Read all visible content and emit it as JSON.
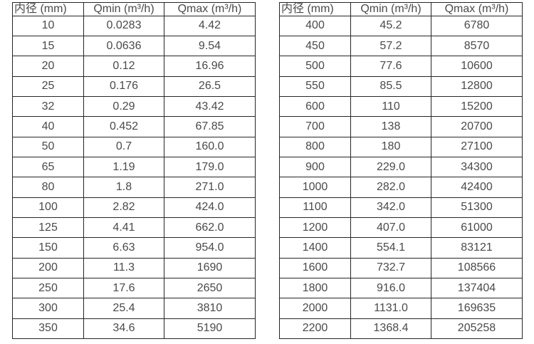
{
  "colors": {
    "background": "#ffffff",
    "border": "#262626",
    "text": "#4a4a4a"
  },
  "chart_data": [
    {
      "type": "table",
      "name": "flow-rate-table-small-diameters",
      "columns": [
        "内径 (mm)",
        "Qmin (m³/h)",
        "Qmax (m³/h)"
      ],
      "rows": [
        [
          "10",
          "0.0283",
          "4.42"
        ],
        [
          "15",
          "0.0636",
          "9.54"
        ],
        [
          "20",
          "0.12",
          "16.96"
        ],
        [
          "25",
          "0.176",
          "26.5"
        ],
        [
          "32",
          "0.29",
          "43.42"
        ],
        [
          "40",
          "0.452",
          "67.85"
        ],
        [
          "50",
          "0.7",
          "160.0"
        ],
        [
          "65",
          "1.19",
          "179.0"
        ],
        [
          "80",
          "1.8",
          "271.0"
        ],
        [
          "100",
          "2.82",
          "424.0"
        ],
        [
          "125",
          "4.41",
          "662.0"
        ],
        [
          "150",
          "6.63",
          "954.0"
        ],
        [
          "200",
          "11.3",
          "1690"
        ],
        [
          "250",
          "17.6",
          "2650"
        ],
        [
          "300",
          "25.4",
          "3810"
        ],
        [
          "350",
          "34.6",
          "5190"
        ]
      ]
    },
    {
      "type": "table",
      "name": "flow-rate-table-large-diameters",
      "columns": [
        "内径 (mm)",
        "Qmin (m³/h)",
        "Qmax (m³/h)"
      ],
      "rows": [
        [
          "400",
          "45.2",
          "6780"
        ],
        [
          "450",
          "57.2",
          "8570"
        ],
        [
          "500",
          "77.6",
          "10600"
        ],
        [
          "550",
          "85.5",
          "12800"
        ],
        [
          "600",
          "110",
          "15200"
        ],
        [
          "700",
          "138",
          "20700"
        ],
        [
          "800",
          "180",
          "27100"
        ],
        [
          "900",
          "229.0",
          "34300"
        ],
        [
          "1000",
          "282.0",
          "42400"
        ],
        [
          "1100",
          "342.0",
          "51300"
        ],
        [
          "1200",
          "407.0",
          "61000"
        ],
        [
          "1400",
          "554.1",
          "83121"
        ],
        [
          "1600",
          "732.7",
          "108566"
        ],
        [
          "1800",
          "916.0",
          "137404"
        ],
        [
          "2000",
          "1131.0",
          "169635"
        ],
        [
          "2200",
          "1368.4",
          "205258"
        ]
      ]
    }
  ]
}
